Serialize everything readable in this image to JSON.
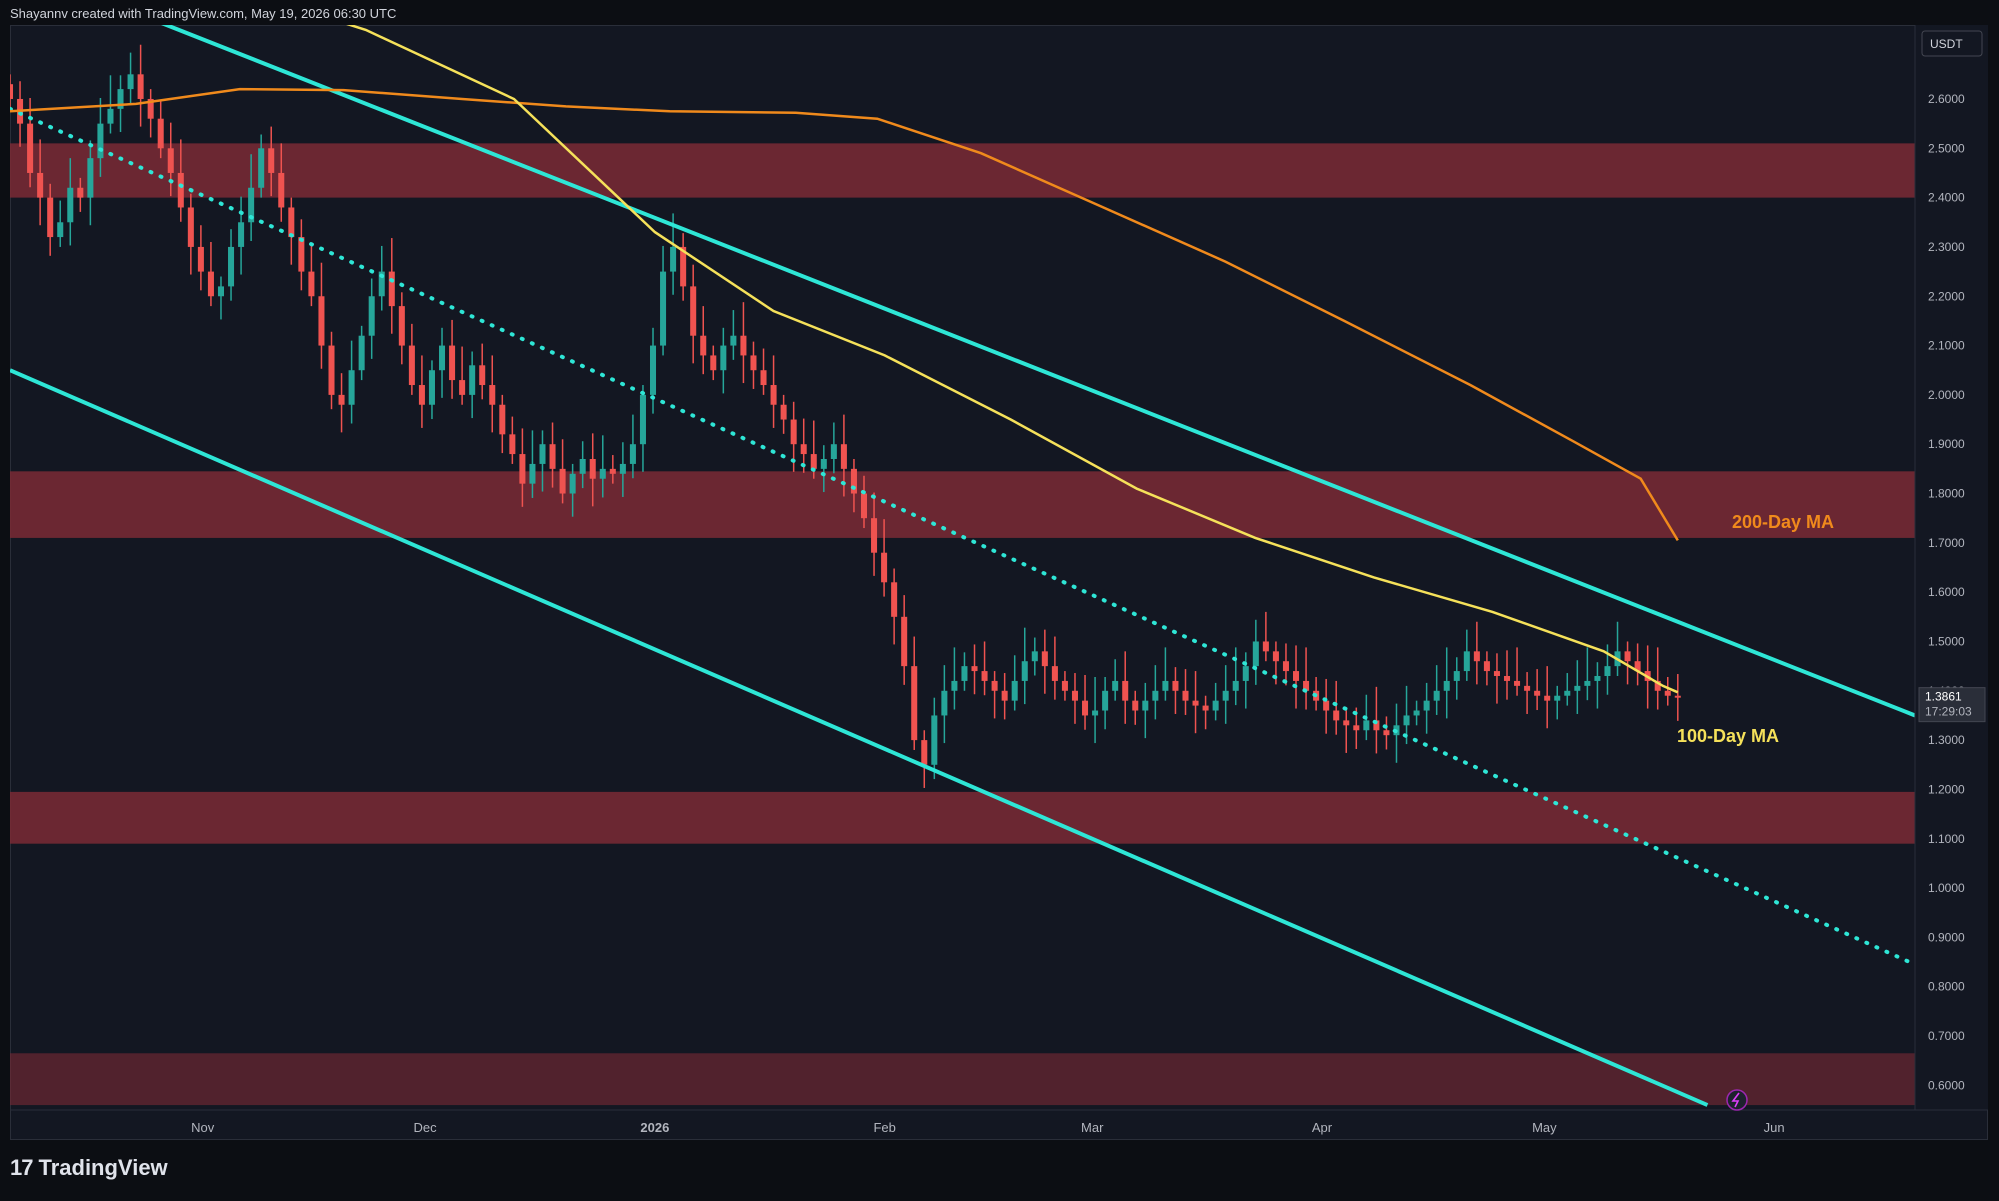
{
  "header": {
    "attribution": "Shayannv created with TradingView.com, May 19, 2026 06:30 UTC"
  },
  "footer": {
    "brand": "TradingView",
    "logo_glyph": "17"
  },
  "price_axis": {
    "currency": "USDT",
    "ticks": [
      "0.6000",
      "0.7000",
      "0.8000",
      "0.9000",
      "1.0000",
      "1.1000",
      "1.2000",
      "1.3000",
      "1.4000",
      "1.5000",
      "1.6000",
      "1.7000",
      "1.8000",
      "1.9000",
      "2.0000",
      "2.1000",
      "2.2000",
      "2.3000",
      "2.4000",
      "2.5000",
      "2.6000"
    ],
    "last_price": "1.3861",
    "countdown": "17:29:03"
  },
  "time_axis": {
    "labels": [
      "Nov",
      "Dec",
      "2026",
      "Feb",
      "Mar",
      "Apr",
      "May",
      "Jun"
    ]
  },
  "annotations": {
    "ma200_label": "200-Day MA",
    "ma100_label": "100-Day MA"
  },
  "colors": {
    "background": "#131722",
    "zone": "#7b2a35",
    "channel": "#2ee6d6",
    "ma100": "#f5e15a",
    "ma200": "#f08a1c",
    "up": "#26a69a",
    "down": "#ef5350"
  },
  "chart_data": {
    "type": "candlestick",
    "x_range": [
      "2025-10-06",
      "2026-06-20"
    ],
    "ylim": [
      0.55,
      2.75
    ],
    "y_scale": "linear",
    "grid": false,
    "zones": [
      {
        "from": 2.4,
        "to": 2.51
      },
      {
        "from": 1.71,
        "to": 1.845
      },
      {
        "from": 1.09,
        "to": 1.195
      },
      {
        "from": 0.56,
        "to": 0.665
      }
    ],
    "channel_upper": [
      {
        "date": "2025-10-17",
        "price": 2.81
      },
      {
        "date": "2026-06-20",
        "price": 1.35
      }
    ],
    "channel_lower": [
      {
        "date": "2025-10-06",
        "price": 2.05
      },
      {
        "date": "2026-05-23",
        "price": 0.56
      }
    ],
    "dotted_trendline": [
      {
        "date": "2025-10-06",
        "price": 2.58
      },
      {
        "date": "2026-06-20",
        "price": 0.845
      }
    ],
    "ma200": [
      [
        "2025-10-06",
        2.575
      ],
      [
        "2025-10-23",
        2.59
      ],
      [
        "2025-11-06",
        2.62
      ],
      [
        "2025-11-20",
        2.618
      ],
      [
        "2025-12-06",
        2.6
      ],
      [
        "2025-12-20",
        2.585
      ],
      [
        "2026-01-03",
        2.575
      ],
      [
        "2026-01-20",
        2.572
      ],
      [
        "2026-01-31",
        2.56
      ],
      [
        "2026-02-14",
        2.49
      ],
      [
        "2026-03-01",
        2.39
      ],
      [
        "2026-03-19",
        2.27
      ],
      [
        "2026-04-04",
        2.15
      ],
      [
        "2026-04-21",
        2.02
      ],
      [
        "2026-05-05",
        1.905
      ],
      [
        "2026-05-14",
        1.83
      ],
      [
        "2026-05-19",
        1.705
      ]
    ],
    "ma100": [
      [
        "2025-11-04",
        2.83
      ],
      [
        "2025-11-23",
        2.74
      ],
      [
        "2025-12-13",
        2.6
      ],
      [
        "2026-01-01",
        2.33
      ],
      [
        "2026-01-17",
        2.17
      ],
      [
        "2026-02-01",
        2.08
      ],
      [
        "2026-02-18",
        1.95
      ],
      [
        "2026-03-07",
        1.81
      ],
      [
        "2026-03-23",
        1.71
      ],
      [
        "2026-04-08",
        1.63
      ],
      [
        "2026-04-24",
        1.56
      ],
      [
        "2026-05-09",
        1.48
      ],
      [
        "2026-05-17",
        1.41
      ],
      [
        "2026-05-19",
        1.397
      ]
    ],
    "ohlc_sample": {
      "start": "2025-10-06",
      "closes": [
        2.6,
        2.55,
        2.45,
        2.4,
        2.32,
        2.35,
        2.42,
        2.4,
        2.48,
        2.55,
        2.58,
        2.62,
        2.65,
        2.6,
        2.56,
        2.5,
        2.45,
        2.38,
        2.3,
        2.25,
        2.2,
        2.22,
        2.3,
        2.35,
        2.42,
        2.5,
        2.45,
        2.38,
        2.32,
        2.25,
        2.2,
        2.1,
        2.0,
        1.98,
        2.05,
        2.12,
        2.2,
        2.25,
        2.18,
        2.1,
        2.02,
        1.98,
        2.05,
        2.1,
        2.03,
        2.0,
        2.06,
        2.02,
        1.98,
        1.92,
        1.88,
        1.82,
        1.86,
        1.9,
        1.85,
        1.8,
        1.84,
        1.87,
        1.83,
        1.85,
        1.84,
        1.86,
        1.9,
        2.0,
        2.1,
        2.25,
        2.3,
        2.22,
        2.12,
        2.08,
        2.05,
        2.1,
        2.12,
        2.08,
        2.05,
        2.02,
        1.98,
        1.95,
        1.9,
        1.88,
        1.85,
        1.87,
        1.9,
        1.85,
        1.8,
        1.75,
        1.68,
        1.62,
        1.55,
        1.45,
        1.3,
        1.25,
        1.35,
        1.4,
        1.42,
        1.45,
        1.44,
        1.42,
        1.4,
        1.38,
        1.42,
        1.46,
        1.48,
        1.45,
        1.42,
        1.4,
        1.38,
        1.35,
        1.36,
        1.4,
        1.42,
        1.38,
        1.36,
        1.38,
        1.4,
        1.42,
        1.4,
        1.38,
        1.37,
        1.36,
        1.38,
        1.4,
        1.42,
        1.45,
        1.5,
        1.48,
        1.46,
        1.44,
        1.42,
        1.4,
        1.38,
        1.36,
        1.34,
        1.33,
        1.32,
        1.34,
        1.32,
        1.31,
        1.33,
        1.35,
        1.36,
        1.38,
        1.4,
        1.42,
        1.44,
        1.48,
        1.46,
        1.44,
        1.43,
        1.42,
        1.41,
        1.4,
        1.39,
        1.38,
        1.39,
        1.4,
        1.41,
        1.42,
        1.43,
        1.45,
        1.48,
        1.46,
        1.44,
        1.42,
        1.4,
        1.39,
        1.386
      ]
    }
  }
}
